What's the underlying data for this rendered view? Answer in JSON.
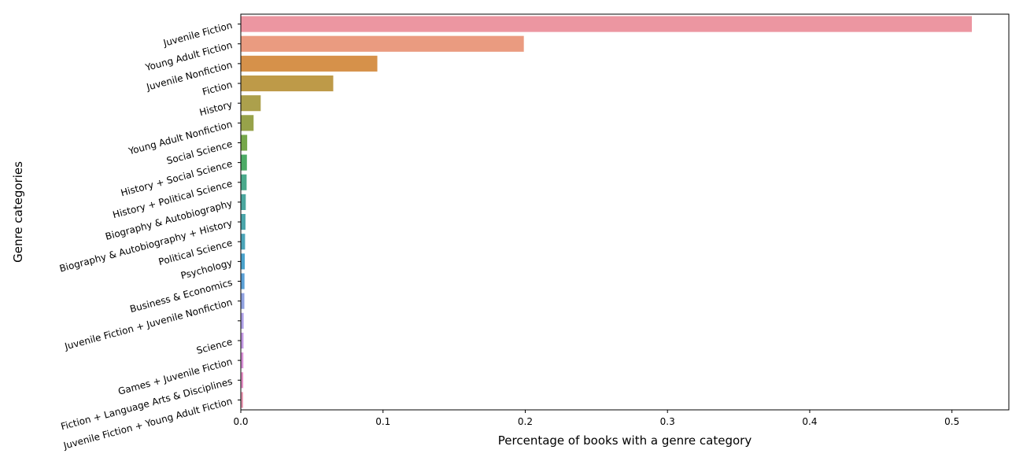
{
  "chart_data": {
    "type": "bar",
    "orientation": "horizontal",
    "title": "",
    "xlabel": "Percentage of books with a genre category",
    "ylabel": "Genre categories",
    "xlim": [
      0,
      0.54
    ],
    "x_ticks": [
      "0.0",
      "0.1",
      "0.2",
      "0.3",
      "0.4",
      "0.5"
    ],
    "grid": false,
    "categories": [
      "Juvenile Fiction",
      "Young Adult Fiction",
      "Juvenile Nonfiction",
      "Fiction",
      "History",
      "Young Adult Nonfiction",
      "Social Science",
      "History + Social Science",
      "History + Political Science",
      "Biography & Autobiography",
      "Biography & Autobiography + History",
      "Political Science",
      "Psychology",
      "Business & Economics",
      "Juvenile Fiction + Juvenile Nonfiction",
      "",
      "Science",
      "Games + Juvenile Fiction",
      "Fiction + Language Arts & Disciplines",
      "Juvenile Fiction + Young Adult Fiction"
    ],
    "values": [
      0.514,
      0.199,
      0.096,
      0.065,
      0.014,
      0.009,
      0.0045,
      0.0043,
      0.0041,
      0.0035,
      0.0033,
      0.003,
      0.0028,
      0.0026,
      0.0025,
      0.002,
      0.0019,
      0.0018,
      0.0017,
      0.0016
    ],
    "colors": [
      "#ec96a1",
      "#ea9b80",
      "#d6914a",
      "#be9a48",
      "#aca04c",
      "#97a24a",
      "#76a74a",
      "#4caa65",
      "#4aa98b",
      "#4aa69e",
      "#4aa5aa",
      "#4ba4b8",
      "#4aa2cc",
      "#5aa0d6",
      "#8fa1e0",
      "#ad9fe6",
      "#c297e2",
      "#d88fd6",
      "#e48fc4",
      "#e897b1"
    ]
  }
}
